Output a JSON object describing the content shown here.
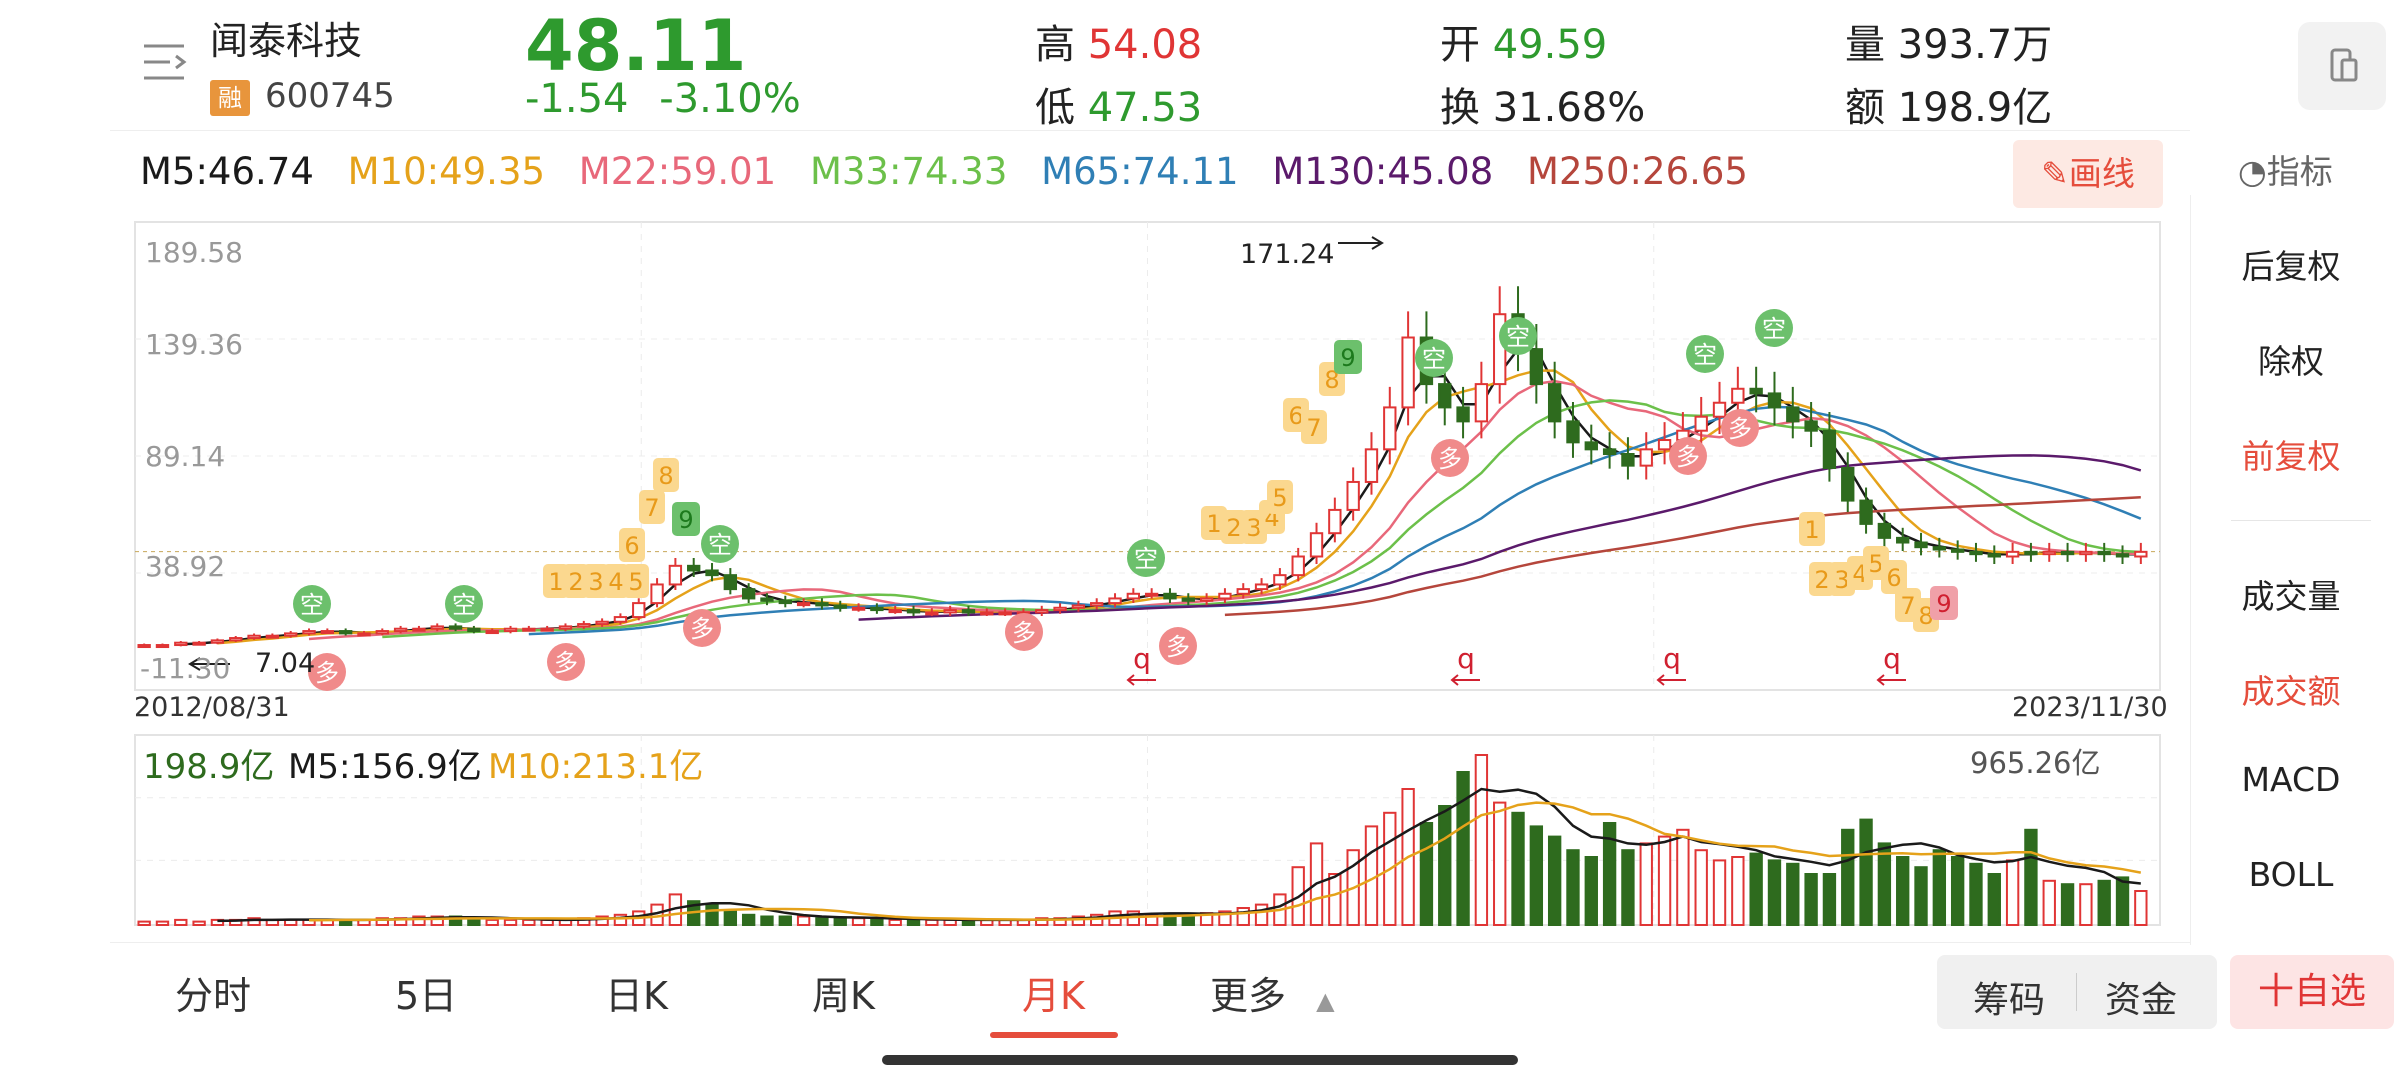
{
  "stock": {
    "name": "闻泰科技",
    "badge": "融",
    "code": "600745",
    "price": "48.11",
    "change": "-1.54",
    "change_pct": "-3.10%"
  },
  "quote": {
    "high_label": "高",
    "high": "54.08",
    "low_label": "低",
    "low": "47.53",
    "open_label": "开",
    "open": "49.59",
    "turnover_label": "换",
    "turnover": "31.68%",
    "volume_label": "量",
    "volume": "393.7万",
    "amount_label": "额",
    "amount": "198.9亿"
  },
  "ma": [
    {
      "label": "M5:46.74",
      "color": "#1a1a1a"
    },
    {
      "label": "M10:49.35",
      "color": "#e5a21a"
    },
    {
      "label": "M22:59.01",
      "color": "#e8687a"
    },
    {
      "label": "M33:74.33",
      "color": "#6cc04a"
    },
    {
      "label": "M65:74.11",
      "color": "#2f7fb5"
    },
    {
      "label": "M130:45.08",
      "color": "#5b1a6b"
    },
    {
      "label": "M250:26.65",
      "color": "#b5463c"
    }
  ],
  "toolbar": {
    "draw_label": "画线",
    "indicator_label": "指标"
  },
  "side_panel": {
    "items": [
      "后复权",
      "除权",
      "前复权",
      "成交量",
      "成交额",
      "MACD",
      "BOLL"
    ],
    "active_adj": "前复权",
    "active_ind": "成交额"
  },
  "chart_data": {
    "type": "candlestick",
    "y_ticks": [
      "189.58",
      "139.36",
      "89.14",
      "38.92",
      "-11.30"
    ],
    "date_start": "2012/08/31",
    "date_end": "2023/11/30",
    "max_label": "171.24",
    "min_label": "7.04",
    "volume_max_label": "965.26亿",
    "volume_legend": [
      {
        "label": "198.9亿",
        "color": "#2e6b1e"
      },
      {
        "label": "M5:156.9亿",
        "color": "#1a1a1a"
      },
      {
        "label": "M10:213.1亿",
        "color": "#e5a21a"
      }
    ],
    "prices": [
      8,
      8,
      9,
      9,
      10,
      11,
      12,
      12,
      13,
      14,
      14,
      13,
      13,
      14,
      15,
      15,
      16,
      15,
      14,
      14,
      15,
      15,
      15,
      16,
      17,
      18,
      20,
      26,
      34,
      42,
      40,
      38,
      32,
      28,
      27,
      26,
      26,
      25,
      24,
      24,
      23,
      23,
      22,
      22,
      23,
      22,
      22,
      22,
      22,
      23,
      24,
      25,
      26,
      28,
      30,
      30,
      28,
      27,
      28,
      30,
      32,
      34,
      38,
      46,
      56,
      66,
      78,
      92,
      110,
      140,
      120,
      110,
      104,
      120,
      150,
      135,
      120,
      104,
      95,
      92,
      90,
      85,
      92,
      96,
      100,
      106,
      112,
      118,
      116,
      110,
      104,
      100,
      84,
      70,
      60,
      54,
      52,
      50,
      49,
      48,
      47,
      46,
      48,
      47,
      48,
      47,
      48,
      47,
      46,
      48
    ],
    "volumes": [
      2,
      2,
      3,
      2,
      3,
      3,
      4,
      3,
      3,
      3,
      3,
      3,
      3,
      4,
      4,
      5,
      5,
      5,
      4,
      3,
      3,
      3,
      3,
      3,
      4,
      5,
      6,
      8,
      12,
      18,
      14,
      12,
      8,
      6,
      5,
      5,
      5,
      4,
      4,
      4,
      4,
      3,
      3,
      3,
      3,
      3,
      3,
      3,
      3,
      4,
      4,
      5,
      6,
      8,
      8,
      6,
      6,
      6,
      7,
      8,
      10,
      12,
      18,
      34,
      48,
      30,
      44,
      58,
      66,
      80,
      60,
      70,
      90,
      100,
      72,
      66,
      58,
      52,
      44,
      40,
      60,
      44,
      48,
      52,
      56,
      44,
      38,
      40,
      42,
      38,
      36,
      30,
      30,
      56,
      62,
      48,
      40,
      34,
      44,
      40,
      36,
      30,
      38,
      56,
      26,
      24,
      24,
      26,
      28,
      20
    ]
  },
  "tabs": [
    "分时",
    "5日",
    "日K",
    "周K",
    "月K",
    "更多"
  ],
  "active_tab": "月K",
  "bottom_buttons": {
    "chips": "筹码",
    "funds": "资金",
    "add_watch": "十自选"
  },
  "colors": {
    "up": "#e03535",
    "down": "#2e6b1e",
    "accent": "#e54d3c"
  }
}
